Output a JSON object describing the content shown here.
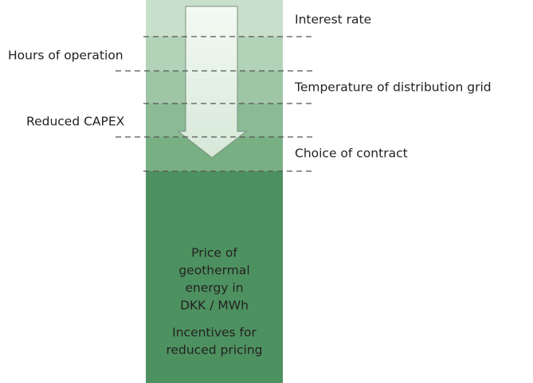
{
  "factors": [
    {
      "label": "Interest rate"
    },
    {
      "label": "Hours of operation"
    },
    {
      "label": "Temperature of distribution grid"
    },
    {
      "label": "Reduced CAPEX"
    },
    {
      "label": "Choice of contract"
    }
  ],
  "price": {
    "lines": [
      "Price of",
      "geothermal",
      "energy in",
      "DKK / MWh"
    ]
  },
  "incentives": {
    "lines": [
      "Incentives for",
      "reduced pricing"
    ]
  }
}
